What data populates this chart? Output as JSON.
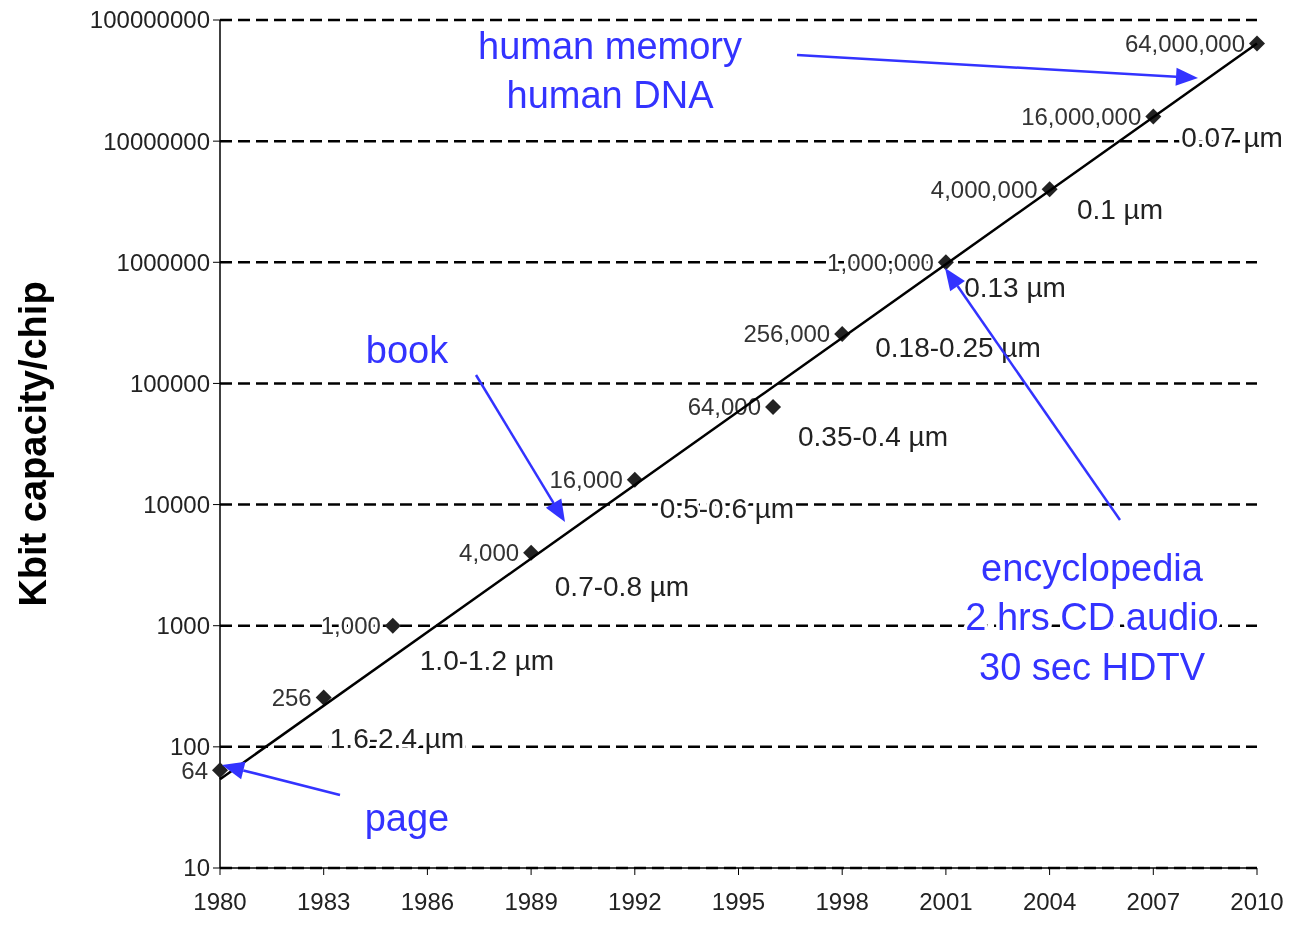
{
  "chart_data": {
    "type": "scatter",
    "ylabel": "Kbit capacity/chip",
    "log": "y",
    "grid": "y",
    "marker": "diamond",
    "xlim": [
      1980,
      2010
    ],
    "xticks": [
      1980,
      1983,
      1986,
      1989,
      1992,
      1995,
      1998,
      2001,
      2004,
      2007,
      2010
    ],
    "ylim": [
      10,
      100000000
    ],
    "yticks": [
      10,
      100,
      1000,
      10000,
      100000,
      1000000,
      10000000,
      100000000
    ],
    "series": [
      {
        "color": "#222222",
        "x": [
          1980,
          1983,
          1985,
          1989,
          1992,
          1996,
          1998,
          2001,
          2004,
          2007,
          2010
        ],
        "values": [
          64,
          256,
          1000,
          4000,
          16000,
          64000,
          256000,
          1000000,
          4000000,
          16000000,
          64000000
        ],
        "value_labels": [
          "64",
          "256",
          "1,000",
          "4,000",
          "16,000",
          "64,000",
          "256,000",
          "1,000,000",
          "4,000,000",
          "16,000,000",
          "64,000,000"
        ]
      },
      {
        "type": "line",
        "color": "#000000",
        "marker": "none",
        "x": [
          1980,
          2010
        ],
        "values": [
          54,
          64000000
        ]
      }
    ],
    "annotations": [
      "1.6-2.4 µm",
      "1.0-1.2 µm",
      "0.7-0.8 µm",
      "0.5-0.6 µm",
      "0.35-0.4 µm",
      "0.18-0.25 µm",
      "0.13 µm",
      "0.1 µm",
      "0.07 µm",
      "human memory\nhuman DNA",
      "book",
      "encyclopedia\n2 hrs CD audio\n30 sec HDTV",
      "page"
    ]
  }
}
